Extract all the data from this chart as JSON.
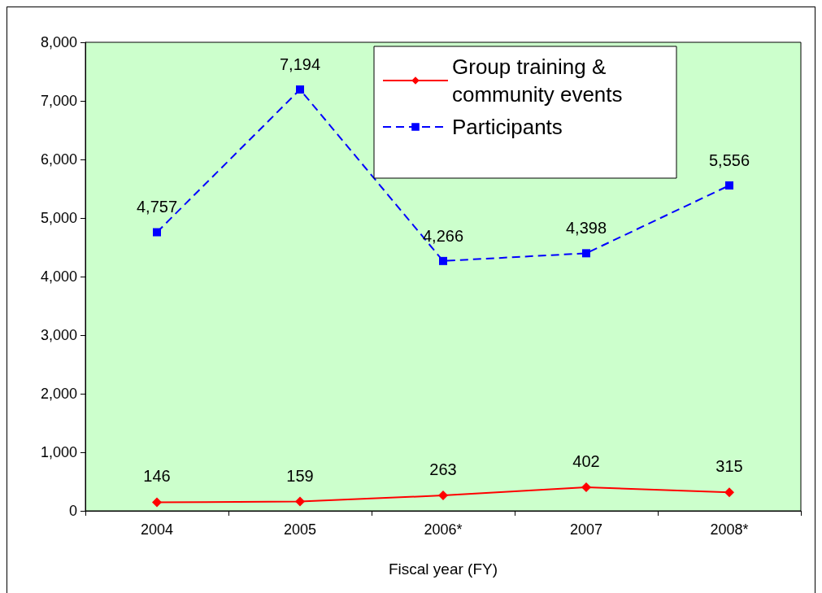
{
  "chart_data": {
    "type": "line",
    "xlabel": "Fiscal year (FY)",
    "categories": [
      "2004",
      "2005",
      "2006*",
      "2007",
      "2008*"
    ],
    "series": [
      {
        "name": "Group training & community events",
        "color": "#ff0000",
        "values": [
          146,
          159,
          263,
          402,
          315
        ],
        "value_labels": [
          "146",
          "159",
          "263",
          "402",
          "315"
        ],
        "marker": "diamond",
        "line_style": "solid"
      },
      {
        "name": "Participants",
        "color": "#0000ff",
        "values": [
          4757,
          7194,
          4266,
          4398,
          5556
        ],
        "value_labels": [
          "4,757",
          "7,194",
          "4,266",
          "4,398",
          "5,556"
        ],
        "marker": "square",
        "line_style": "dashed"
      }
    ],
    "ylim": [
      0,
      8000
    ],
    "yticks": [
      0,
      {
        "value": 1000,
        "label": "1,000"
      },
      {
        "value": 2000,
        "label": "2,000"
      },
      {
        "value": 3000,
        "label": "3,000"
      },
      {
        "value": 4000,
        "label": "4,000"
      },
      {
        "value": 5000,
        "label": "5,000"
      },
      {
        "value": 6000,
        "label": "6,000"
      },
      {
        "value": 7000,
        "label": "7,000"
      },
      {
        "value": 8000,
        "label": "8,000"
      }
    ],
    "grid": false,
    "legend": "top right"
  }
}
